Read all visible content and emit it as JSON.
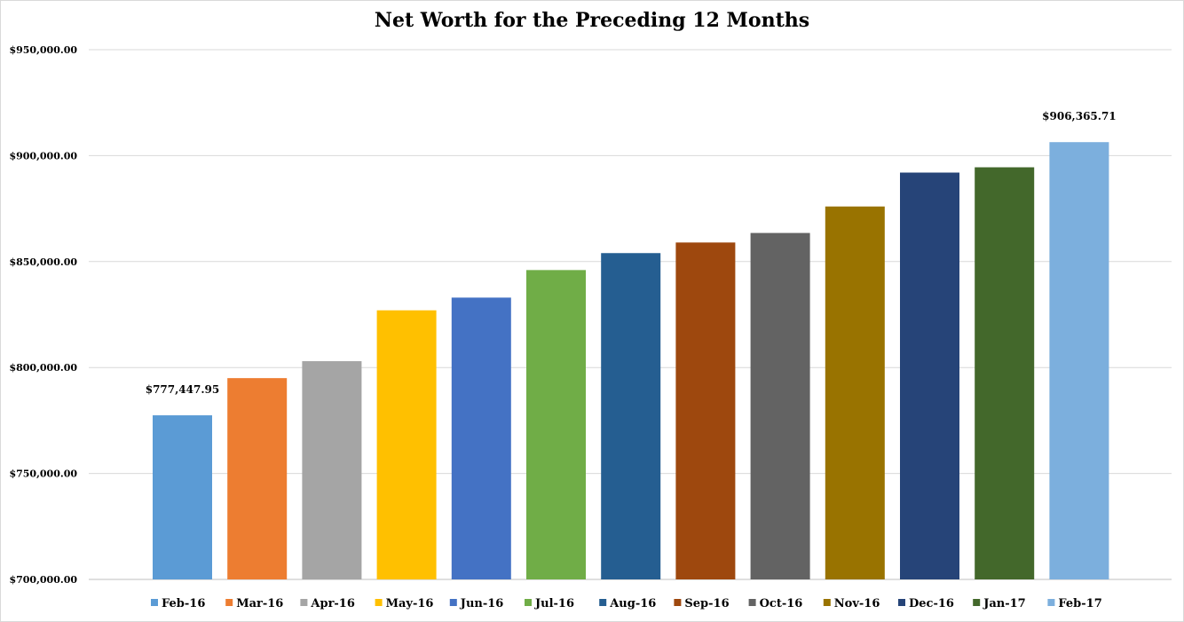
{
  "chart_data": {
    "type": "bar",
    "title": "Net Worth for the Preceding 12 Months",
    "xlabel": "",
    "ylabel": "",
    "ylim": [
      700000,
      950000
    ],
    "yticks": [
      700000,
      750000,
      800000,
      850000,
      900000,
      950000
    ],
    "ytick_labels": [
      "$700,000.00",
      "$750,000.00",
      "$800,000.00",
      "$850,000.00",
      "$900,000.00",
      "$950,000.00"
    ],
    "grid": true,
    "legend_position": "bottom",
    "categories": [
      "Feb-16",
      "Mar-16",
      "Apr-16",
      "May-16",
      "Jun-16",
      "Jul-16",
      "Aug-16",
      "Sep-16",
      "Oct-16",
      "Nov-16",
      "Dec-16",
      "Jan-17",
      "Feb-17"
    ],
    "values": [
      777447.95,
      795000,
      803000,
      827000,
      833000,
      846000,
      854000,
      859000,
      863500,
      876000,
      892000,
      894500,
      906365.71
    ],
    "colors": [
      "#5b9bd5",
      "#ed7d31",
      "#a5a5a5",
      "#ffc000",
      "#4472c4",
      "#70ad47",
      "#255e91",
      "#9e480e",
      "#636363",
      "#997300",
      "#264478",
      "#43682b",
      "#7cafdd"
    ],
    "data_labels": [
      {
        "index": 0,
        "text": "$777,447.95"
      },
      {
        "index": 12,
        "text": "$906,365.71"
      }
    ]
  }
}
